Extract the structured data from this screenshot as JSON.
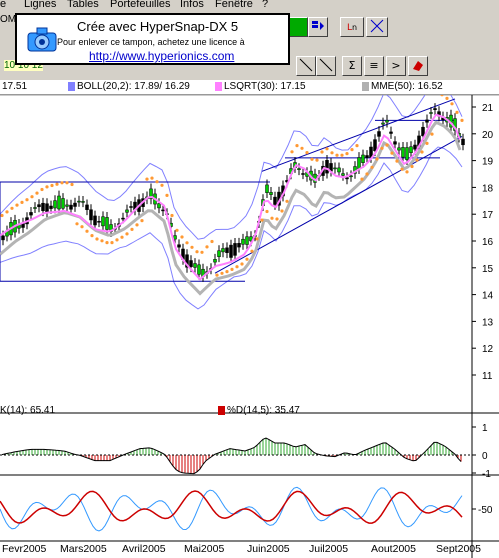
{
  "menu": {
    "items": [
      "Lignes",
      "Tables",
      "Portefeuilles",
      "Infos",
      "Fenêtre",
      "?"
    ],
    "partial_first": "e"
  },
  "stamp": {
    "title": "Crée avec HyperSnap-DX 5",
    "subtitle": "Pour enlever ce tampon, achetez une licence à",
    "url": "http://www.hyperionics.com"
  },
  "toolbar": {
    "left_label_top": "OM",
    "left_label_bottom": "10 10 12"
  },
  "legend": {
    "price": "17.51",
    "boll": "BOLL(20,2): 17.89/ 16.29",
    "lsqrt": "LSQRT(30): 17.15",
    "mme": "MME(50): 16.52",
    "colors": {
      "boll": "#8080ff",
      "lsqrt": "#ff80ff",
      "mme": "#b0b0b0"
    }
  },
  "panels": {
    "macd_label": "K(14): 65.41",
    "stoch_label": "%D(14,5): 35.47",
    "stoch_color": "#cc0000"
  },
  "axis": {
    "price_ticks": [
      "21",
      "20",
      "19",
      "18",
      "17",
      "16",
      "15",
      "14",
      "13",
      "12",
      "11"
    ],
    "macd_ticks": [
      "1",
      "0",
      "-1"
    ],
    "stoch_ticks": [
      "-50"
    ]
  },
  "months": [
    "Fevr2005",
    "Mars2005",
    "Avril2005",
    "Mai2005",
    "Juin2005",
    "Juil2005",
    "Aout2005",
    "Sept2005"
  ],
  "chart_data": {
    "type": "candlestick",
    "x": [
      "Fevr2005",
      "Mars2005",
      "Avril2005",
      "Mai2005",
      "Juin2005",
      "Juil2005",
      "Aout2005",
      "Sept2005"
    ],
    "ylim": [
      10.5,
      21.5
    ],
    "close_approx": [
      17.0,
      17.5,
      17.8,
      15.2,
      18.0,
      18.8,
      20.3,
      19.8
    ],
    "horizontal_levels": [
      18.2,
      14.5,
      19.1,
      20.5
    ],
    "series": [
      {
        "name": "BOLL(20,2)",
        "values": [
          17.0,
          17.3,
          17.5,
          15.5,
          17.0,
          18.8,
          19.8,
          20.0
        ]
      },
      {
        "name": "LSQRT(30)",
        "values": [
          16.8,
          17.2,
          17.6,
          15.1,
          16.4,
          18.7,
          19.9,
          20.2
        ]
      },
      {
        "name": "MME(50)",
        "values": [
          16.0,
          16.5,
          16.9,
          15.8,
          16.0,
          17.8,
          18.9,
          19.4
        ]
      }
    ]
  }
}
